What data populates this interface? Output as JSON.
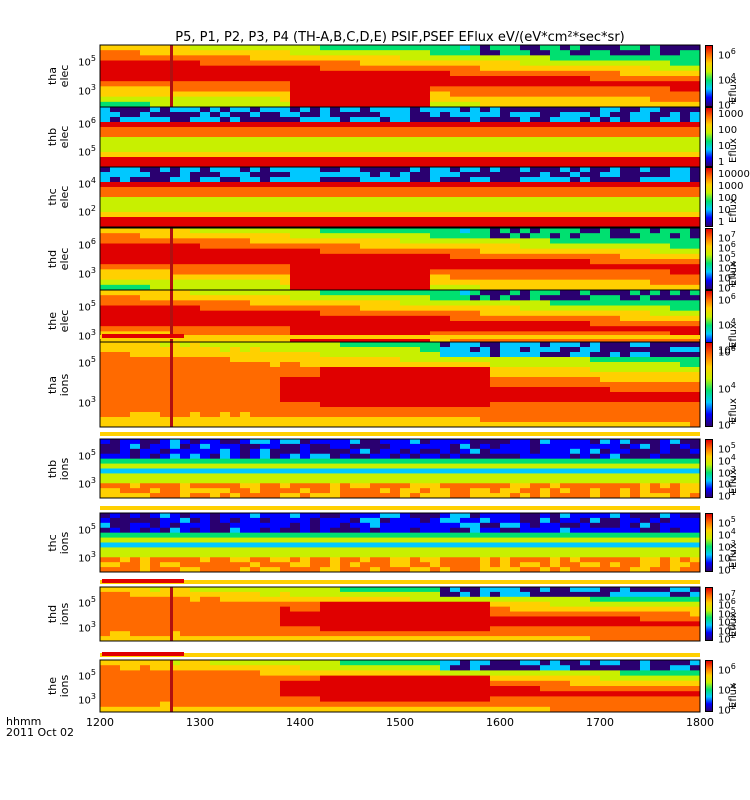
{
  "chart_data": {
    "type": "heatmap",
    "title": "P5, P1, P2, P3, P4 (TH-A,B,C,D,E) PSIF,PSEF EFlux eV/(eV*cm²*sec*sr)",
    "xlabel_line1": "hhmm",
    "xlabel_line2": "2011 Oct 02",
    "xlim": [
      1200,
      1800
    ],
    "xticks": [
      "1200",
      "1300",
      "1400",
      "1500",
      "1600",
      "1700",
      "1800"
    ],
    "marker_time": 1271,
    "colormap": [
      "#2a0070",
      "#0000ff",
      "#00c8ff",
      "#00e070",
      "#c8f000",
      "#ffd000",
      "#ff6a00",
      "#e00000"
    ],
    "panels": [
      {
        "label_line1": "tha",
        "label_line2": "elec",
        "yticks": [
          "10^5",
          "10^3"
        ],
        "cbar_ticks": [
          "10^6",
          "10^4",
          "10^2"
        ],
        "cbar_label": "Eflux",
        "pattern": "dynamic_elec"
      },
      {
        "label_line1": "thb",
        "label_line2": "elec",
        "yticks": [
          "10^6",
          "10^5"
        ],
        "cbar_ticks": [
          "1000",
          "100",
          "10",
          "1"
        ],
        "cbar_label": "Eflux",
        "pattern": "static_band"
      },
      {
        "label_line1": "thc",
        "label_line2": "elec",
        "yticks": [
          "10^4",
          "10^2"
        ],
        "cbar_ticks": [
          "10000",
          "1000",
          "100",
          "10",
          "1"
        ],
        "cbar_label": "Eflux",
        "pattern": "static_band"
      },
      {
        "label_line1": "thd",
        "label_line2": "elec",
        "yticks": [
          "10^6",
          "10^3"
        ],
        "cbar_ticks": [
          "10^7",
          "10^6",
          "10^5",
          "10^4",
          "10^3",
          "10^2"
        ],
        "cbar_label": "Eflux",
        "pattern": "dynamic_elec"
      },
      {
        "label_line1": "the",
        "label_line2": "elec",
        "yticks": [
          "10^5",
          "10^3"
        ],
        "cbar_ticks": [
          "10^6",
          "10^4",
          "10^2"
        ],
        "cbar_label": "Eflux",
        "pattern": "dynamic_elec"
      },
      {
        "label_line1": "tha",
        "label_line2": "ions",
        "yticks": [
          "10^5",
          "10^3"
        ],
        "cbar_ticks": [
          "10^6",
          "10^4",
          "10^2"
        ],
        "cbar_label": "Eflux",
        "pattern": "dynamic_ion"
      },
      {
        "label_line1": "thb",
        "label_line2": "ions",
        "yticks": [
          "10^5",
          "10^3"
        ],
        "cbar_ticks": [
          "10^5",
          "10^4",
          "10^3",
          "10^2",
          "10^1"
        ],
        "cbar_label": "Eflux",
        "pattern": "static_ion"
      },
      {
        "label_line1": "thc",
        "label_line2": "ions",
        "yticks": [
          "10^5",
          "10^3"
        ],
        "cbar_ticks": [
          "10^5",
          "10^4",
          "10^3",
          "10^2",
          "10^1"
        ],
        "cbar_label": "Eflux",
        "pattern": "static_ion"
      },
      {
        "label_line1": "thd",
        "label_line2": "ions",
        "yticks": [
          "10^5",
          "10^3"
        ],
        "cbar_ticks": [
          "10^7",
          "10^6",
          "10^5",
          "10^4",
          "10^3",
          "10^2"
        ],
        "cbar_label": "Eflux",
        "pattern": "dynamic_ion"
      },
      {
        "label_line1": "the",
        "label_line2": "ions",
        "yticks": [
          "10^5",
          "10^3"
        ],
        "cbar_ticks": [
          "10^6",
          "10^4",
          "10^2"
        ],
        "cbar_label": "Eflux",
        "pattern": "dynamic_ion"
      }
    ]
  }
}
